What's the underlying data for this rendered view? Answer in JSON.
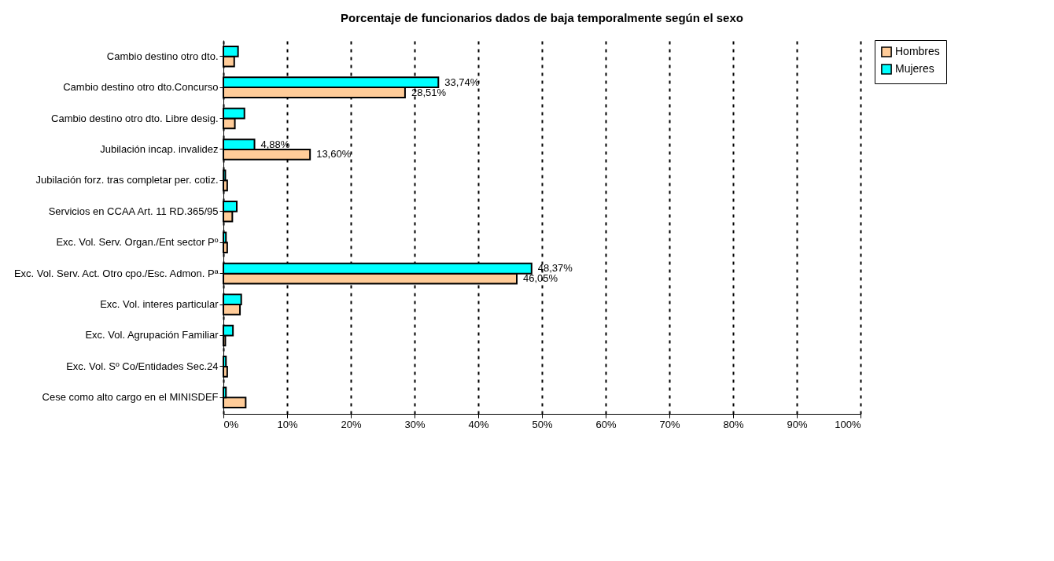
{
  "chart_data": {
    "type": "bar",
    "orientation": "horizontal",
    "title": "Porcentaje de funcionarios dados de baja temporalmente según el sexo",
    "categories": [
      "Cambio destino otro dto.",
      "Cambio destino otro dto.Concurso",
      "Cambio destino otro dto. Libre desig.",
      "Jubilación incap. invalidez",
      "Jubilación forz. tras completar per. cotiz.",
      "Servicios en CCAA Art. 11 RD.365/95",
      "Exc. Vol. Serv. Organ./Ent sector Pº",
      "Exc. Vol. Serv. Act. Otro cpo./Esc. Admon. Pª",
      "Exc. Vol. interes particular",
      "Exc. Vol. Agrupación Familiar",
      "Exc. Vol. Sº Co/Entidades Sec.24",
      "Cese como alto cargo en el MINISDEF"
    ],
    "series": [
      {
        "name": "Hombres",
        "color": "#ffcc99",
        "values": [
          1.7,
          28.51,
          1.8,
          13.6,
          0.6,
          1.4,
          0.6,
          46.05,
          2.6,
          0.3,
          0.6,
          3.5
        ],
        "value_labels": [
          null,
          "28,51%",
          null,
          "13,60%",
          null,
          null,
          null,
          "46,05%",
          null,
          null,
          null,
          null
        ]
      },
      {
        "name": "Mujeres",
        "color": "#00ffff",
        "values": [
          2.3,
          33.74,
          3.3,
          4.88,
          0.3,
          2.1,
          0.4,
          48.37,
          2.8,
          1.5,
          0.4,
          0.4
        ],
        "value_labels": [
          null,
          "33,74%",
          null,
          "4,88%",
          null,
          null,
          null,
          "48,37%",
          null,
          null,
          null,
          null
        ]
      }
    ],
    "xlim": [
      0,
      100
    ],
    "xticks": [
      {
        "value": 0,
        "label": "0%"
      },
      {
        "value": 10,
        "label": "10%"
      },
      {
        "value": 20,
        "label": "20%"
      },
      {
        "value": 30,
        "label": "30%"
      },
      {
        "value": 40,
        "label": "40%"
      },
      {
        "value": 50,
        "label": "50%"
      },
      {
        "value": 60,
        "label": "60%"
      },
      {
        "value": 70,
        "label": "70%"
      },
      {
        "value": 80,
        "label": "80%"
      },
      {
        "value": 90,
        "label": "90%"
      },
      {
        "value": 100,
        "label": "100%"
      }
    ],
    "grid": "x",
    "line_style": "dashed",
    "legend": "right"
  }
}
